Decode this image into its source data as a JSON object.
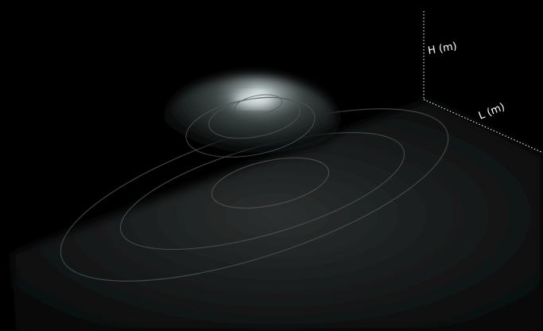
{
  "axes": {
    "h_label": "H (m)",
    "l_label": "L (m)"
  }
}
